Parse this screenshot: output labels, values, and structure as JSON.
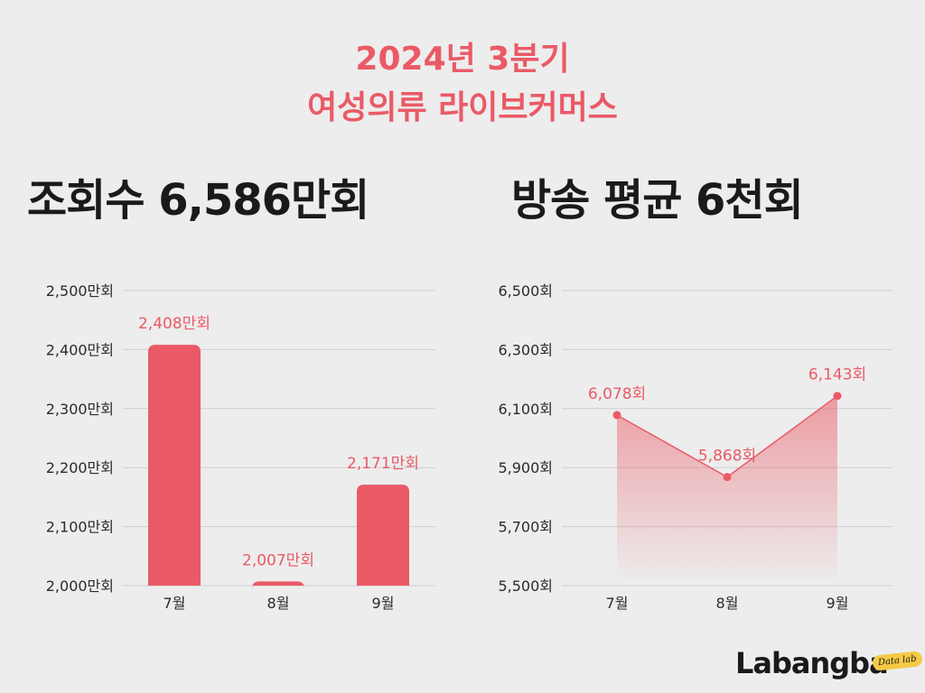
{
  "header": {
    "line1": "2024년 3분기",
    "line2": "여성의류 라이브커머스"
  },
  "headlines": {
    "left": "조회수 6,586만회",
    "right": "방송 평균 6천회"
  },
  "brand": {
    "logo": "Labangba",
    "badge": "Data lab"
  },
  "colors": {
    "accent": "#ea5a66",
    "grid": "#cfcfcf",
    "axis_text": "#2b2b2b"
  },
  "chart_data": [
    {
      "type": "bar",
      "categories": [
        "7월",
        "8월",
        "9월"
      ],
      "values": [
        2408,
        2007,
        2171
      ],
      "data_labels": [
        "2,408만회",
        "2,007만회",
        "2,171만회"
      ],
      "ylim": [
        2000,
        2500
      ],
      "yticks": [
        2000,
        2100,
        2200,
        2300,
        2400,
        2500
      ],
      "ytick_labels": [
        "2,000만회",
        "2,100만회",
        "2,200만회",
        "2,300만회",
        "2,400만회",
        "2,500만회"
      ],
      "grid": true
    },
    {
      "type": "area",
      "categories": [
        "7월",
        "8월",
        "9월"
      ],
      "values": [
        6078,
        5868,
        6143
      ],
      "data_labels": [
        "6,078회",
        "5,868회",
        "6,143회"
      ],
      "ylim": [
        5500,
        6500
      ],
      "yticks": [
        5500,
        5700,
        5900,
        6100,
        6300,
        6500
      ],
      "ytick_labels": [
        "5,500회",
        "5,700회",
        "5,900회",
        "6,100회",
        "6,300회",
        "6,500회"
      ],
      "grid": true
    }
  ]
}
